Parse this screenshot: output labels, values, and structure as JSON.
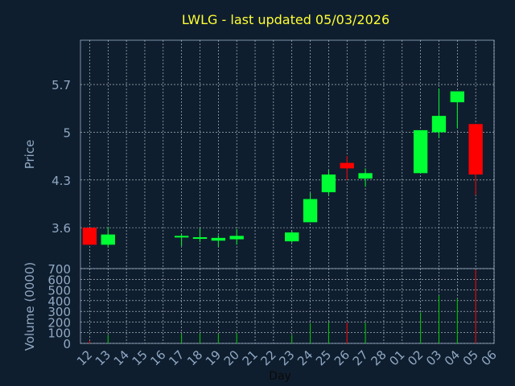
{
  "chart_data": [
    {
      "type": "candlestick",
      "title": "LWLG - last updated 05/03/2026",
      "ylabel": "Price",
      "ylim": [
        3.0,
        6.35
      ],
      "yticks": [
        3.6,
        4.3,
        5,
        5.7
      ],
      "ytick_labels": [
        "3.6",
        "4.3",
        "5",
        "5.7"
      ],
      "grid": true,
      "up_color": "#00ff33",
      "down_color": "#ff0000",
      "categories": [
        "12",
        "13",
        "14",
        "15",
        "16",
        "17",
        "18",
        "19",
        "20",
        "21",
        "22",
        "23",
        "24",
        "25",
        "26",
        "27",
        "28",
        "01",
        "02",
        "03",
        "04",
        "05",
        "06"
      ],
      "candles": [
        {
          "day": 0,
          "open": 3.6,
          "close": 3.35,
          "high": 3.6,
          "low": 3.35
        },
        {
          "day": 1,
          "open": 3.35,
          "close": 3.5,
          "high": 3.61,
          "low": 3.31
        },
        {
          "day": 5,
          "open": 3.46,
          "close": 3.48,
          "high": 3.51,
          "low": 3.33
        },
        {
          "day": 6,
          "open": 3.44,
          "close": 3.46,
          "high": 3.59,
          "low": 3.39
        },
        {
          "day": 7,
          "open": 3.41,
          "close": 3.45,
          "high": 3.49,
          "low": 3.32
        },
        {
          "day": 8,
          "open": 3.43,
          "close": 3.48,
          "high": 3.58,
          "low": 3.35
        },
        {
          "day": 11,
          "open": 3.4,
          "close": 3.53,
          "high": 3.55,
          "low": 3.38
        },
        {
          "day": 12,
          "open": 3.68,
          "close": 4.02,
          "high": 4.11,
          "low": 3.68
        },
        {
          "day": 13,
          "open": 4.12,
          "close": 4.38,
          "high": 4.45,
          "low": 4.07
        },
        {
          "day": 14,
          "open": 4.55,
          "close": 4.47,
          "high": 4.65,
          "low": 4.3
        },
        {
          "day": 15,
          "open": 4.32,
          "close": 4.4,
          "high": 4.47,
          "low": 4.2
        },
        {
          "day": 18,
          "open": 4.4,
          "close": 5.03,
          "high": 5.03,
          "low": 4.4
        },
        {
          "day": 19,
          "open": 5.0,
          "close": 5.24,
          "high": 5.64,
          "low": 4.92
        },
        {
          "day": 20,
          "open": 5.44,
          "close": 5.6,
          "high": 5.6,
          "low": 5.06
        },
        {
          "day": 21,
          "open": 5.12,
          "close": 4.38,
          "high": 5.12,
          "low": 4.08
        }
      ]
    },
    {
      "type": "bar",
      "ylabel": "Volume (0000)",
      "ylim": [
        0,
        700
      ],
      "yticks": [
        0,
        100,
        200,
        300,
        400,
        500,
        600,
        700
      ],
      "ytick_labels": [
        "0",
        "100",
        "200",
        "300",
        "400",
        "500",
        "600",
        "700"
      ],
      "xlabel": "Day",
      "grid": true,
      "categories": [
        "12",
        "13",
        "14",
        "15",
        "16",
        "17",
        "18",
        "19",
        "20",
        "21",
        "22",
        "23",
        "24",
        "25",
        "26",
        "27",
        "28",
        "01",
        "02",
        "03",
        "04",
        "05",
        "06"
      ],
      "bars": [
        {
          "day": 0,
          "value": 25,
          "color": "#ff0000"
        },
        {
          "day": 1,
          "value": 80,
          "color": "#00cc00"
        },
        {
          "day": 5,
          "value": 90,
          "color": "#00cc00"
        },
        {
          "day": 6,
          "value": 95,
          "color": "#00cc00"
        },
        {
          "day": 7,
          "value": 90,
          "color": "#00cc00"
        },
        {
          "day": 8,
          "value": 95,
          "color": "#00cc00"
        },
        {
          "day": 11,
          "value": 80,
          "color": "#00cc00"
        },
        {
          "day": 12,
          "value": 190,
          "color": "#00cc00"
        },
        {
          "day": 13,
          "value": 200,
          "color": "#00cc00"
        },
        {
          "day": 14,
          "value": 195,
          "color": "#ff0000"
        },
        {
          "day": 15,
          "value": 195,
          "color": "#00cc00"
        },
        {
          "day": 18,
          "value": 290,
          "color": "#00cc00"
        },
        {
          "day": 19,
          "value": 450,
          "color": "#00cc00"
        },
        {
          "day": 20,
          "value": 420,
          "color": "#00cc00"
        },
        {
          "day": 21,
          "value": 690,
          "color": "#ff0000"
        }
      ]
    }
  ]
}
